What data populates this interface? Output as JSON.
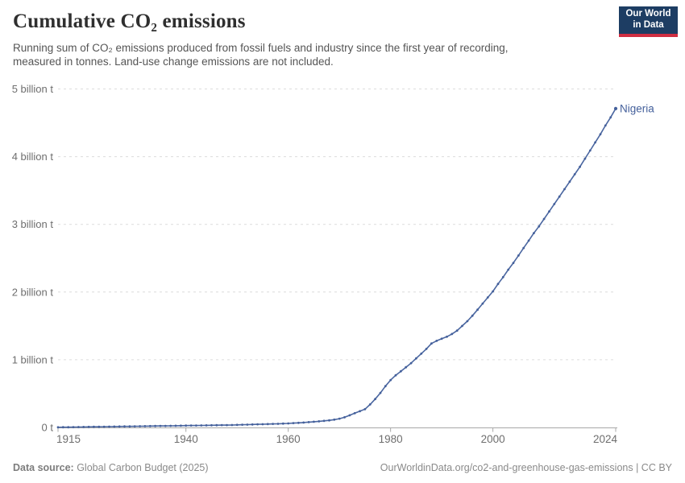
{
  "header": {
    "title": "Cumulative CO₂ emissions",
    "subtitle_line1": "Running sum of CO₂ emissions produced from fossil fuels and industry since the first year of recording,",
    "subtitle_line2": "measured in tonnes. Land-use change emissions are not included.",
    "logo_line1": "Our World",
    "logo_line2": "in Data"
  },
  "footer": {
    "source_label": "Data source:",
    "source_value": " Global Carbon Budget (2025)",
    "link": "OurWorldinData.org/co2-and-greenhouse-gas-emissions | CC BY"
  },
  "colors": {
    "line": "#4a66a0",
    "dot": "#44609b",
    "entity_label": "#44609b",
    "grid": "#dcdcdc",
    "axis": "#a8a8a8",
    "tick_text": "#6e6e6e",
    "logo_bg": "#1d3d63",
    "logo_red": "#cf2e41"
  },
  "chart_data": {
    "type": "line",
    "title": "Cumulative CO₂ emissions",
    "entity": "Nigeria",
    "values_unit": "billion tonnes of CO₂",
    "xlim": [
      1915,
      2024
    ],
    "ylim": [
      0,
      5
    ],
    "grid": "dashed-horizontal",
    "legend_position": "end-of-line-label",
    "x_ticks": [
      {
        "year": 1915,
        "label": "1915"
      },
      {
        "year": 1940,
        "label": "1940"
      },
      {
        "year": 1960,
        "label": "1960"
      },
      {
        "year": 1980,
        "label": "1980"
      },
      {
        "year": 2000,
        "label": "2000"
      },
      {
        "year": 2024,
        "label": "2024"
      }
    ],
    "y_ticks": [
      {
        "value": 0,
        "label": "0 t"
      },
      {
        "value": 1,
        "label": "1 billion t"
      },
      {
        "value": 2,
        "label": "2 billion t"
      },
      {
        "value": 3,
        "label": "3 billion t"
      },
      {
        "value": 4,
        "label": "4 billion t"
      },
      {
        "value": 5,
        "label": "5 billion t"
      }
    ],
    "x": [
      1915,
      1916,
      1917,
      1918,
      1919,
      1920,
      1921,
      1922,
      1923,
      1924,
      1925,
      1926,
      1927,
      1928,
      1929,
      1930,
      1931,
      1932,
      1933,
      1934,
      1935,
      1936,
      1937,
      1938,
      1939,
      1940,
      1941,
      1942,
      1943,
      1944,
      1945,
      1946,
      1947,
      1948,
      1949,
      1950,
      1951,
      1952,
      1953,
      1954,
      1955,
      1956,
      1957,
      1958,
      1959,
      1960,
      1961,
      1962,
      1963,
      1964,
      1965,
      1966,
      1967,
      1968,
      1969,
      1970,
      1971,
      1972,
      1973,
      1974,
      1975,
      1976,
      1977,
      1978,
      1979,
      1980,
      1981,
      1982,
      1983,
      1984,
      1985,
      1986,
      1987,
      1988,
      1989,
      1990,
      1991,
      1992,
      1993,
      1994,
      1995,
      1996,
      1997,
      1998,
      1999,
      2000,
      2001,
      2002,
      2003,
      2004,
      2005,
      2006,
      2007,
      2008,
      2009,
      2010,
      2011,
      2012,
      2013,
      2014,
      2015,
      2016,
      2017,
      2018,
      2019,
      2020,
      2021,
      2022,
      2023,
      2024
    ],
    "series": [
      {
        "name": "Nigeria",
        "color": "#4a66a0",
        "values": [
          0.002,
          0.003,
          0.004,
          0.005,
          0.006,
          0.007,
          0.008,
          0.009,
          0.01,
          0.011,
          0.012,
          0.013,
          0.014,
          0.015,
          0.016,
          0.017,
          0.018,
          0.019,
          0.02,
          0.021,
          0.022,
          0.023,
          0.024,
          0.025,
          0.026,
          0.027,
          0.028,
          0.029,
          0.03,
          0.031,
          0.032,
          0.033,
          0.034,
          0.035,
          0.036,
          0.038,
          0.04,
          0.042,
          0.044,
          0.046,
          0.048,
          0.05,
          0.052,
          0.054,
          0.057,
          0.06,
          0.064,
          0.068,
          0.073,
          0.078,
          0.084,
          0.09,
          0.097,
          0.105,
          0.115,
          0.13,
          0.15,
          0.18,
          0.21,
          0.24,
          0.27,
          0.34,
          0.42,
          0.51,
          0.61,
          0.7,
          0.77,
          0.83,
          0.89,
          0.95,
          1.02,
          1.09,
          1.16,
          1.24,
          1.28,
          1.31,
          1.34,
          1.38,
          1.43,
          1.5,
          1.57,
          1.65,
          1.74,
          1.83,
          1.92,
          2.01,
          2.12,
          2.22,
          2.33,
          2.43,
          2.54,
          2.65,
          2.76,
          2.87,
          2.97,
          3.08,
          3.19,
          3.3,
          3.41,
          3.52,
          3.63,
          3.74,
          3.85,
          3.97,
          4.09,
          4.21,
          4.33,
          4.46,
          4.58,
          4.71
        ]
      }
    ]
  }
}
